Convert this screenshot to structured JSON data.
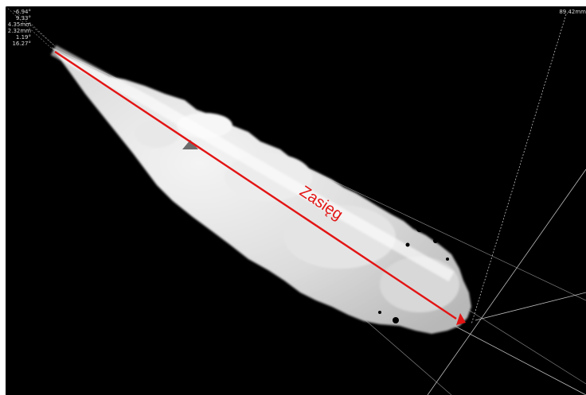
{
  "readouts": {
    "left": [
      "-6.94°",
      "9.33°",
      "4.35mm",
      "2.32mm",
      "1.19°",
      "16.27°"
    ],
    "right": "89.42mm"
  },
  "annotation": {
    "label": "Zasięg",
    "arrow_color": "#e31414",
    "marker_color": "#6d6d6d"
  },
  "image": {
    "description_icon": "spray-plume",
    "background": "#000000"
  }
}
